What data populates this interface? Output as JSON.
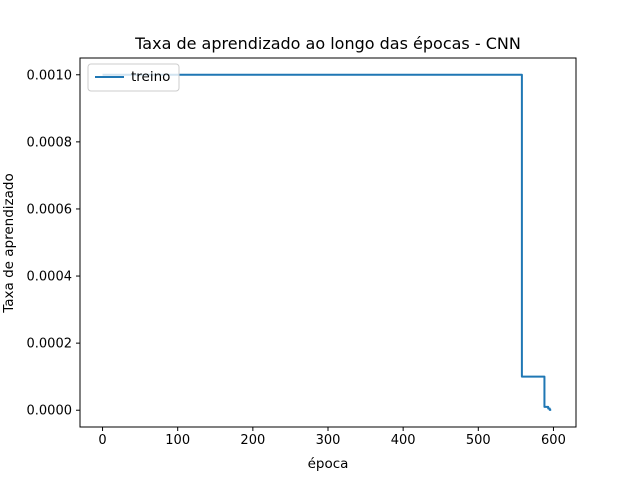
{
  "chart_data": {
    "type": "line",
    "title": "Taxa de aprendizado ao longo das épocas - CNN",
    "xlabel": "época",
    "ylabel": "Taxa de aprendizado",
    "xlim": [
      -30,
      630
    ],
    "ylim": [
      -5e-05,
      0.00105
    ],
    "x_ticks": [
      0,
      100,
      200,
      300,
      400,
      500,
      600
    ],
    "x_tick_labels": [
      "0",
      "100",
      "200",
      "300",
      "400",
      "500",
      "600"
    ],
    "y_ticks": [
      0.0,
      0.0002,
      0.0004,
      0.0006,
      0.0008,
      0.001
    ],
    "y_tick_labels": [
      "0.0000",
      "0.0002",
      "0.0004",
      "0.0006",
      "0.0008",
      "0.0010"
    ],
    "grid": false,
    "legend_position": "top-left",
    "series": [
      {
        "name": "treino",
        "color": "#1f77b4",
        "x": [
          0,
          558,
          558,
          588,
          588,
          593,
          593,
          595,
          595,
          597
        ],
        "y": [
          0.001,
          0.001,
          0.0001,
          0.0001,
          1e-05,
          1e-05,
          5e-06,
          5e-06,
          1e-06,
          1e-06
        ]
      }
    ]
  }
}
